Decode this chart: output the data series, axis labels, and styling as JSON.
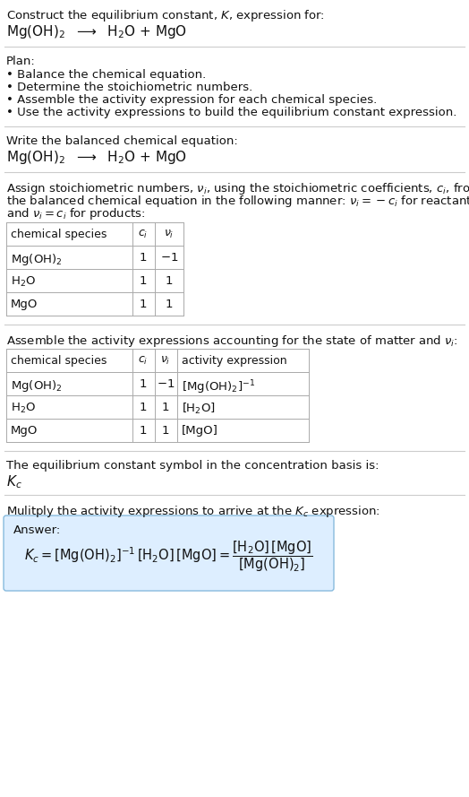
{
  "bg_color": "#ffffff",
  "title_line1": "Construct the equilibrium constant, $K$, expression for:",
  "title_line2": "Mg(OH)$_2$  $\\longrightarrow$  H$_2$O + MgO",
  "plan_header": "Plan:",
  "plan_items": [
    "• Balance the chemical equation.",
    "• Determine the stoichiometric numbers.",
    "• Assemble the activity expression for each chemical species.",
    "• Use the activity expressions to build the equilibrium constant expression."
  ],
  "balanced_header": "Write the balanced chemical equation:",
  "balanced_eq": "Mg(OH)$_2$  $\\longrightarrow$  H$_2$O + MgO",
  "stoich_intro_lines": [
    "Assign stoichiometric numbers, $\\nu_i$, using the stoichiometric coefficients, $c_i$, from",
    "the balanced chemical equation in the following manner: $\\nu_i = -c_i$ for reactants",
    "and $\\nu_i = c_i$ for products:"
  ],
  "table1_headers": [
    "chemical species",
    "$c_i$",
    "$\\nu_i$"
  ],
  "table1_rows": [
    [
      "Mg(OH)$_2$",
      "1",
      "$-1$"
    ],
    [
      "H$_2$O",
      "1",
      "1"
    ],
    [
      "MgO",
      "1",
      "1"
    ]
  ],
  "activity_intro": "Assemble the activity expressions accounting for the state of matter and $\\nu_i$:",
  "table2_headers": [
    "chemical species",
    "$c_i$",
    "$\\nu_i$",
    "activity expression"
  ],
  "table2_rows": [
    [
      "Mg(OH)$_2$",
      "1",
      "$-1$",
      "[Mg(OH)$_2$]$^{-1}$"
    ],
    [
      "H$_2$O",
      "1",
      "1",
      "[H$_2$O]"
    ],
    [
      "MgO",
      "1",
      "1",
      "[MgO]"
    ]
  ],
  "kc_text1": "The equilibrium constant symbol in the concentration basis is:",
  "kc_symbol": "$K_c$",
  "multiply_text": "Mulitply the activity expressions to arrive at the $K_c$ expression:",
  "answer_box_color": "#ddeeff",
  "answer_box_edge": "#88bbdd",
  "answer_label": "Answer:",
  "answer_line1": "$K_c = [\\mathrm{Mg(OH)_2}]^{-1}\\,[\\mathrm{H_2O}]\\,[\\mathrm{MgO}] = \\dfrac{[\\mathrm{H_2O}]\\,[\\mathrm{MgO}]}{[\\mathrm{Mg(OH)_2}]}$"
}
